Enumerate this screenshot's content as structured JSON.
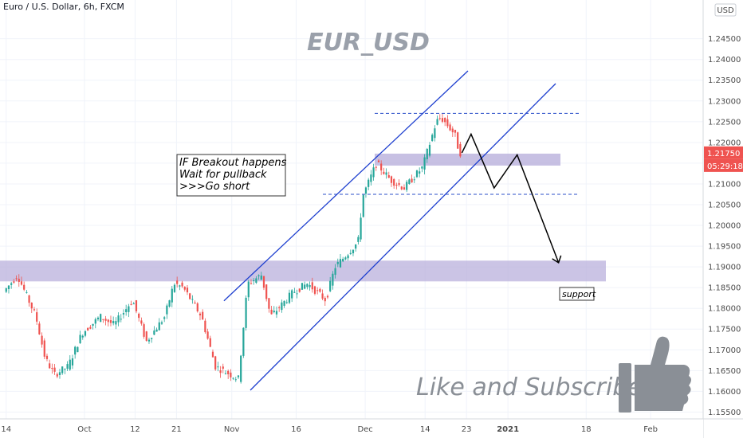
{
  "header": {
    "symbol_line": "Euro / U.S. Dollar, 6h, FXCM"
  },
  "price_axis": {
    "currency": "USD",
    "last_price": "1.21750",
    "countdown": "05:29:18"
  },
  "colors": {
    "bull": "#26a69a",
    "bear": "#ef5350",
    "channel": "#1e3fcf",
    "zone": "#b9b0dc",
    "dashed": "#2b4fc9",
    "price_tag": "#ef5350",
    "grid": "#f0f3fa"
  },
  "annotations": {
    "watermark": "EUR_USD",
    "note_lines": [
      "IF  Breakout happens",
      "Wait for pullback",
      ">>>Go short"
    ],
    "support_label": "support",
    "cta": "Like and Subscribe!",
    "cta_icon": "thumbs-up-icon"
  },
  "chart_data": {
    "type": "candlestick",
    "title": "Euro / U.S. Dollar, 6h, FXCM",
    "ylim": [
      1.1545,
      1.2505
    ],
    "y_ticks": [
      "1.15500",
      "1.16000",
      "1.16500",
      "1.17000",
      "1.17500",
      "1.18000",
      "1.18500",
      "1.19000",
      "1.19500",
      "1.20000",
      "1.20500",
      "1.21000",
      "1.21500",
      "1.22000",
      "1.22500",
      "1.23000",
      "1.23500",
      "1.24000",
      "1.24500"
    ],
    "x_tick_labels": [
      "14",
      "Oct",
      "12",
      "21",
      "Nov",
      "16",
      "Dec",
      "14",
      "23",
      "2021",
      "18",
      "Feb"
    ],
    "last_price": 1.2175,
    "support_zone": [
      1.1865,
      1.1915
    ],
    "resistance_zone": [
      1.2155,
      1.217
    ],
    "resistance_line": 1.227,
    "support_line": 1.2075,
    "price_path": [
      [
        "2020-09-14",
        1.184
      ],
      [
        "2020-09-17",
        1.188
      ],
      [
        "2020-09-21",
        1.178
      ],
      [
        "2020-09-23",
        1.168
      ],
      [
        "2020-09-25",
        1.164
      ],
      [
        "2020-09-28",
        1.166
      ],
      [
        "2020-10-01",
        1.174
      ],
      [
        "2020-10-05",
        1.178
      ],
      [
        "2020-10-08",
        1.176
      ],
      [
        "2020-10-12",
        1.182
      ],
      [
        "2020-10-15",
        1.172
      ],
      [
        "2020-10-19",
        1.178
      ],
      [
        "2020-10-21",
        1.186
      ],
      [
        "2020-10-23",
        1.185
      ],
      [
        "2020-10-27",
        1.178
      ],
      [
        "2020-10-30",
        1.166
      ],
      [
        "2020-11-04",
        1.163
      ],
      [
        "2020-11-06",
        1.186
      ],
      [
        "2020-11-09",
        1.188
      ],
      [
        "2020-11-11",
        1.178
      ],
      [
        "2020-11-16",
        1.184
      ],
      [
        "2020-11-19",
        1.186
      ],
      [
        "2020-11-23",
        1.182
      ],
      [
        "2020-11-25",
        1.19
      ],
      [
        "2020-11-30",
        1.196
      ],
      [
        "2020-12-01",
        1.207
      ],
      [
        "2020-12-04",
        1.215
      ],
      [
        "2020-12-07",
        1.211
      ],
      [
        "2020-12-10",
        1.209
      ],
      [
        "2020-12-14",
        1.214
      ],
      [
        "2020-12-17",
        1.225
      ],
      [
        "2020-12-18",
        1.226
      ],
      [
        "2020-12-21",
        1.222
      ],
      [
        "2020-12-22",
        1.2175
      ]
    ],
    "channel": {
      "upper": [
        [
          "2020-11-01",
          1.182
        ],
        [
          "2020-12-19",
          1.234
        ]
      ],
      "lower": [
        [
          "2020-11-05",
          1.1605
        ],
        [
          "2020-12-31",
          1.23
        ]
      ]
    },
    "projection": [
      [
        "2020-12-22",
        1.2175
      ],
      [
        "2020-12-24",
        1.222
      ],
      [
        "2020-12-29",
        1.209
      ],
      [
        "2021-01-03",
        1.217
      ],
      [
        "2021-01-12",
        1.191
      ]
    ]
  }
}
